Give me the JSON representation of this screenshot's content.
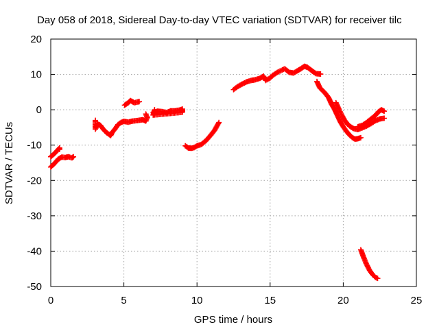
{
  "chart_data": {
    "type": "scatter",
    "title": "Day 058 of 2018, Sidereal Day-to-day VTEC variation (SDTVAR) for receiver tilc",
    "xlabel": "GPS time / hours",
    "ylabel": "SDTVAR / TECUs",
    "xlim": [
      0,
      25
    ],
    "ylim": [
      -50,
      20
    ],
    "xticks": [
      "0",
      "5",
      "10",
      "15",
      "20",
      "25"
    ],
    "yticks": [
      "20",
      "10",
      "0",
      "-10",
      "-20",
      "-30",
      "-40",
      "-50"
    ],
    "grid": true,
    "marker": "plus",
    "color": "#ff0000",
    "series": [
      {
        "segments": [
          [
            [
              0.0,
              -13.3
            ],
            [
              0.3,
              -12.2
            ],
            [
              0.6,
              -10.8
            ],
            [
              0.6,
              -11.2
            ]
          ],
          [
            [
              0.0,
              -16.2
            ],
            [
              0.3,
              -15.0
            ],
            [
              0.5,
              -14.0
            ],
            [
              0.75,
              -13.4
            ],
            [
              1.0,
              -13.5
            ],
            [
              1.2,
              -13.3
            ],
            [
              1.45,
              -13.6
            ],
            [
              1.55,
              -13.3
            ]
          ],
          [
            [
              3.05,
              -3.0
            ],
            [
              3.05,
              -5.5
            ],
            [
              3.2,
              -4.0
            ],
            [
              3.4,
              -4.4
            ],
            [
              3.55,
              -5.3
            ],
            [
              3.7,
              -6.0
            ],
            [
              3.85,
              -6.6
            ],
            [
              4.0,
              -7.0
            ],
            [
              4.1,
              -7.3
            ],
            [
              4.2,
              -6.4
            ],
            [
              4.4,
              -5.4
            ],
            [
              4.6,
              -4.2
            ],
            [
              4.8,
              -3.6
            ],
            [
              5.0,
              -3.3
            ],
            [
              5.3,
              -3.5
            ],
            [
              5.6,
              -3.2
            ],
            [
              6.0,
              -3.0
            ],
            [
              6.3,
              -2.8
            ],
            [
              6.5,
              -3.2
            ],
            [
              6.6,
              -2.2
            ],
            [
              6.5,
              -1.2
            ]
          ],
          [
            [
              5.05,
              1.3
            ],
            [
              5.3,
              2.0
            ],
            [
              5.45,
              2.6
            ],
            [
              5.7,
              2.0
            ],
            [
              5.95,
              2.2
            ],
            [
              6.05,
              2.3
            ]
          ],
          [
            [
              7.0,
              -0.7
            ],
            [
              7.3,
              -0.4
            ],
            [
              7.6,
              -0.5
            ],
            [
              7.9,
              -0.8
            ],
            [
              8.2,
              -0.3
            ],
            [
              8.5,
              -0.3
            ],
            [
              8.8,
              -0.1
            ],
            [
              9.0,
              0.2
            ],
            [
              9.0,
              -0.7
            ],
            [
              7.0,
              -1.5
            ],
            [
              7.1,
              0.0
            ]
          ],
          [
            [
              9.2,
              -10.2
            ],
            [
              9.4,
              -10.8
            ],
            [
              9.6,
              -10.9
            ],
            [
              9.8,
              -10.7
            ],
            [
              10.0,
              -10.2
            ],
            [
              10.3,
              -9.8
            ],
            [
              10.6,
              -8.8
            ],
            [
              10.9,
              -7.4
            ],
            [
              11.2,
              -5.8
            ],
            [
              11.5,
              -3.6
            ]
          ],
          [
            [
              12.5,
              5.7
            ],
            [
              12.8,
              6.6
            ],
            [
              13.1,
              7.3
            ],
            [
              13.4,
              7.9
            ],
            [
              13.7,
              8.3
            ],
            [
              14.0,
              8.5
            ],
            [
              14.3,
              8.9
            ],
            [
              14.55,
              9.5
            ],
            [
              14.7,
              8.3
            ],
            [
              15.0,
              9.0
            ],
            [
              15.2,
              9.8
            ],
            [
              15.5,
              10.6
            ],
            [
              15.75,
              11.1
            ],
            [
              16.0,
              11.6
            ],
            [
              16.3,
              10.6
            ],
            [
              16.6,
              10.4
            ],
            [
              16.9,
              11.1
            ],
            [
              17.1,
              11.6
            ],
            [
              17.35,
              12.3
            ],
            [
              17.55,
              12.0
            ],
            [
              17.75,
              11.4
            ],
            [
              17.9,
              10.9
            ],
            [
              18.15,
              10.2
            ],
            [
              18.45,
              10.1
            ]
          ],
          [
            [
              18.2,
              8.0
            ],
            [
              18.4,
              6.2
            ],
            [
              18.7,
              5.0
            ],
            [
              19.0,
              3.4
            ],
            [
              19.2,
              1.6
            ],
            [
              19.4,
              0.2
            ],
            [
              19.6,
              -1.6
            ],
            [
              19.8,
              -3.4
            ],
            [
              20.0,
              -4.8
            ],
            [
              20.2,
              -6.0
            ],
            [
              20.4,
              -7.0
            ],
            [
              20.6,
              -7.8
            ],
            [
              20.8,
              -8.3
            ],
            [
              21.0,
              -8.2
            ],
            [
              21.2,
              -7.9
            ]
          ],
          [
            [
              19.5,
              2.0
            ],
            [
              19.7,
              0.2
            ],
            [
              19.9,
              -1.5
            ],
            [
              20.1,
              -3.0
            ],
            [
              20.3,
              -4.1
            ],
            [
              20.5,
              -4.8
            ],
            [
              20.7,
              -5.3
            ],
            [
              21.0,
              -5.6
            ],
            [
              21.3,
              -5.1
            ],
            [
              21.6,
              -4.6
            ],
            [
              21.9,
              -3.9
            ],
            [
              22.2,
              -3.1
            ],
            [
              22.5,
              -2.6
            ],
            [
              22.8,
              -2.4
            ]
          ],
          [
            [
              21.0,
              -4.8
            ],
            [
              21.3,
              -4.4
            ],
            [
              21.6,
              -3.6
            ],
            [
              21.9,
              -2.6
            ],
            [
              22.2,
              -1.6
            ],
            [
              22.4,
              -0.6
            ],
            [
              22.6,
              0.0
            ],
            [
              22.8,
              -0.4
            ]
          ],
          [
            [
              21.2,
              -39.6
            ],
            [
              21.4,
              -41.8
            ],
            [
              21.6,
              -43.8
            ],
            [
              21.8,
              -45.4
            ],
            [
              22.0,
              -46.6
            ],
            [
              22.2,
              -47.4
            ],
            [
              22.35,
              -47.7
            ]
          ]
        ]
      }
    ]
  }
}
